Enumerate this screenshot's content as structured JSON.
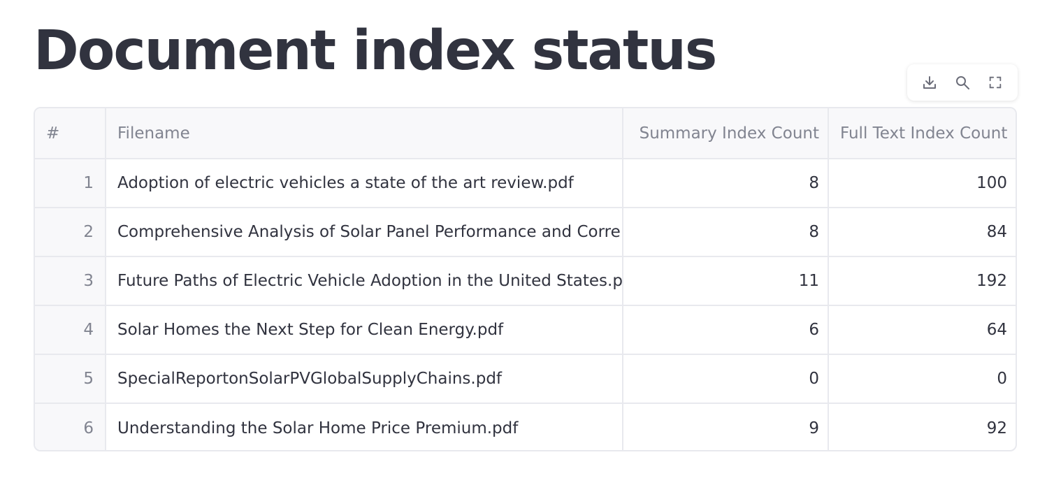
{
  "page": {
    "title": "Document index status"
  },
  "toolbar": {
    "icons": [
      "download-icon",
      "search-icon",
      "fullscreen-icon"
    ]
  },
  "table": {
    "columns": {
      "index": "#",
      "filename": "Filename",
      "summary": "Summary Index Count",
      "fulltext": "Full Text Index Count"
    },
    "rows": [
      {
        "idx": "1",
        "filename": "Adoption of electric vehicles a state of the art review.pdf",
        "summary": "8",
        "fulltext": "100"
      },
      {
        "idx": "2",
        "filename": "Comprehensive Analysis of Solar Panel Performance and Corre",
        "summary": "8",
        "fulltext": "84"
      },
      {
        "idx": "3",
        "filename": "Future Paths of Electric Vehicle Adoption in the United States.p",
        "summary": "11",
        "fulltext": "192"
      },
      {
        "idx": "4",
        "filename": "Solar Homes the Next Step for Clean Energy.pdf",
        "summary": "6",
        "fulltext": "64"
      },
      {
        "idx": "5",
        "filename": "SpecialReportonSolarPVGlobalSupplyChains.pdf",
        "summary": "0",
        "fulltext": "0"
      },
      {
        "idx": "6",
        "filename": "Understanding the Solar Home Price Premium.pdf",
        "summary": "9",
        "fulltext": "92"
      }
    ]
  }
}
